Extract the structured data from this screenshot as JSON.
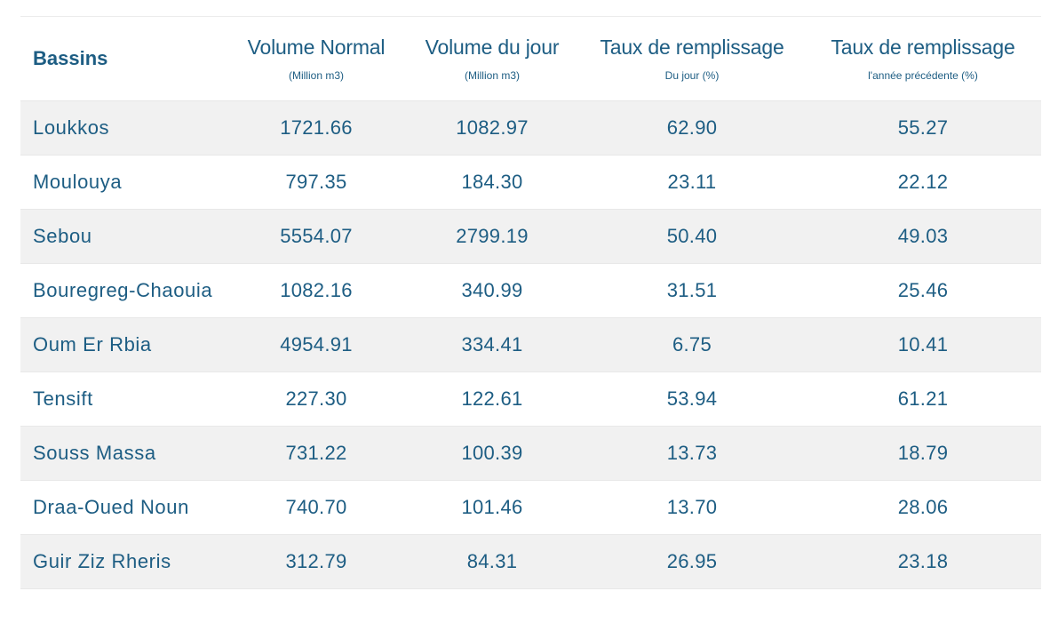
{
  "colors": {
    "text": "#1d5d83",
    "row_alt_background": "#f1f1f1",
    "row_background": "#ffffff"
  },
  "table": {
    "headers": [
      {
        "title": "Bassins",
        "subtitle": ""
      },
      {
        "title": "Volume Normal",
        "subtitle": "(Million m3)"
      },
      {
        "title": "Volume du jour",
        "subtitle": "(Million m3)"
      },
      {
        "title": "Taux de remplissage",
        "subtitle": "Du jour (%)"
      },
      {
        "title": "Taux de remplissage",
        "subtitle": "l'année précédente (%)"
      }
    ],
    "rows": [
      [
        "Loukkos",
        "1721.66",
        "1082.97",
        "62.90",
        "55.27"
      ],
      [
        "Moulouya",
        "797.35",
        "184.30",
        "23.11",
        "22.12"
      ],
      [
        "Sebou",
        "5554.07",
        "2799.19",
        "50.40",
        "49.03"
      ],
      [
        "Bouregreg-Chaouia",
        "1082.16",
        "340.99",
        "31.51",
        "25.46"
      ],
      [
        "Oum Er Rbia",
        "4954.91",
        "334.41",
        "6.75",
        "10.41"
      ],
      [
        "Tensift",
        "227.30",
        "122.61",
        "53.94",
        "61.21"
      ],
      [
        "Souss Massa",
        "731.22",
        "100.39",
        "13.73",
        "18.79"
      ],
      [
        "Draa-Oued Noun",
        "740.70",
        "101.46",
        "13.70",
        "28.06"
      ],
      [
        "Guir Ziz Rheris",
        "312.79",
        "84.31",
        "26.95",
        "23.18"
      ]
    ]
  }
}
